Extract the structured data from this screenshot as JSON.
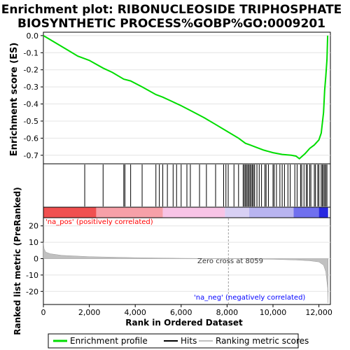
{
  "title_line1": "Enrichment plot: RIBONUCLEOSIDE TRIPHOSPHATE",
  "title_line2": "BIOSYNTHETIC PROCESS%GOBP%GO:0009201",
  "colors": {
    "es_line": "#00dd00",
    "hits": "#000000",
    "metric_fill": "#c0c0c0",
    "pos_label": "#ff0000",
    "neg_label": "#0000ff",
    "zero_cross_line": "#a0a0a0"
  },
  "chart_data": [
    {
      "type": "line",
      "name": "enrichment-score-panel",
      "ylabel": "Enrichment score (ES)",
      "ylim": [
        -0.75,
        0.02
      ],
      "xlim": [
        0,
        12500
      ],
      "yticks": [
        "0.0",
        "-0.1",
        "-0.2",
        "-0.3",
        "-0.4",
        "-0.5",
        "-0.6",
        "-0.7"
      ],
      "grid": true,
      "series": [
        {
          "name": "Enrichment profile",
          "x": [
            0,
            500,
            1000,
            1500,
            1800,
            2000,
            2600,
            3000,
            3500,
            3800,
            4300,
            4900,
            5200,
            5600,
            6000,
            6500,
            7000,
            7500,
            8000,
            8500,
            8800,
            9000,
            9300,
            9600,
            10000,
            10400,
            10800,
            11000,
            11150,
            11400,
            11600,
            11800,
            12000,
            12100,
            12200,
            12250,
            12300,
            12350,
            12380
          ],
          "y": [
            0.0,
            -0.04,
            -0.08,
            -0.12,
            -0.135,
            -0.145,
            -0.19,
            -0.215,
            -0.255,
            -0.265,
            -0.3,
            -0.345,
            -0.36,
            -0.385,
            -0.41,
            -0.445,
            -0.48,
            -0.52,
            -0.56,
            -0.6,
            -0.63,
            -0.64,
            -0.655,
            -0.67,
            -0.685,
            -0.695,
            -0.7,
            -0.705,
            -0.72,
            -0.69,
            -0.66,
            -0.64,
            -0.61,
            -0.57,
            -0.45,
            -0.32,
            -0.24,
            -0.14,
            0.0
          ]
        }
      ]
    },
    {
      "type": "scatter",
      "name": "hits-panel",
      "legend": "Hits",
      "x": [
        1800,
        2600,
        3500,
        3550,
        3800,
        4300,
        4900,
        5050,
        5200,
        5400,
        5650,
        5800,
        6000,
        6250,
        6400,
        6800,
        7100,
        7500,
        7850,
        7950,
        8050,
        8300,
        8500,
        8700,
        8750,
        8800,
        8850,
        8900,
        8950,
        9000,
        9050,
        9100,
        9150,
        9200,
        9300,
        9400,
        9500,
        9650,
        9700,
        9800,
        10000,
        10050,
        10150,
        10300,
        10400,
        10500,
        10650,
        10750,
        10950,
        11050,
        11200,
        11250,
        11350,
        11450,
        11500,
        11600,
        11650,
        11800,
        11850,
        11950,
        12000,
        12100,
        12150,
        12200,
        12250,
        12300,
        12350
      ]
    },
    {
      "type": "area",
      "name": "ranked-metric-panel",
      "legend": "Ranking metric scores",
      "xlabel": "Rank in Ordered Dataset",
      "ylabel": "Ranked list metric (PreRanked)",
      "ylim": [
        -28,
        25
      ],
      "xlim": [
        0,
        12500
      ],
      "xticks": [
        "0",
        "2,000",
        "4,000",
        "6,000",
        "8,000",
        "10,000",
        "12,000"
      ],
      "yticks": [
        "20",
        "10",
        "0",
        "-10",
        "-20"
      ],
      "x": [
        0,
        30,
        100,
        300,
        800,
        2000,
        4000,
        6000,
        8059,
        10000,
        11000,
        11600,
        12000,
        12200,
        12300,
        12380,
        12400
      ],
      "y": [
        10,
        6,
        4,
        3,
        2,
        1.2,
        0.6,
        0.2,
        0,
        -0.4,
        -0.8,
        -1.3,
        -2,
        -4,
        -8,
        -18,
        -27
      ],
      "annotations": {
        "pos": "'na_pos' (positively correlated)",
        "neg": "'na_neg' (negatively correlated)",
        "zero": "Zero cross at 8059"
      },
      "zero_cross": 8059
    }
  ],
  "legend": {
    "items": [
      {
        "label": "Enrichment profile",
        "color": "#00dd00"
      },
      {
        "label": "Hits",
        "color": "#000000"
      },
      {
        "label": "Ranking metric scores",
        "color": "#c0c0c0"
      }
    ]
  }
}
